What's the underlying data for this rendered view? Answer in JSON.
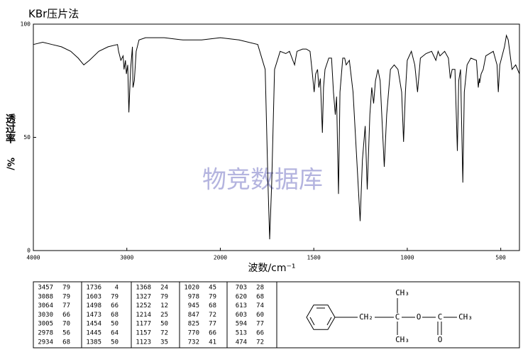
{
  "chart_data": {
    "type": "line",
    "title": "KBr压片法",
    "ylabel": "透过率",
    "ylabel_unit": "%/",
    "xlabel": "波数/cm⁻¹",
    "color": "#000000",
    "xlim": [
      4000,
      400
    ],
    "ylim": [
      0,
      100
    ],
    "xscale": {
      "break": 2000,
      "compress_above": 2
    },
    "xticks": [
      4000,
      3000,
      2000,
      1500,
      1000,
      500
    ],
    "yticks": [
      0,
      50,
      100
    ],
    "x": [
      4000,
      3900,
      3800,
      3700,
      3600,
      3520,
      3460,
      3400,
      3300,
      3200,
      3100,
      3088,
      3064,
      3040,
      3030,
      3015,
      3005,
      2990,
      2978,
      2960,
      2940,
      2934,
      2920,
      2900,
      2870,
      2800,
      2600,
      2400,
      2200,
      2000,
      1900,
      1800,
      1760,
      1745,
      1736,
      1725,
      1710,
      1680,
      1650,
      1630,
      1603,
      1590,
      1560,
      1540,
      1520,
      1510,
      1498,
      1490,
      1480,
      1473,
      1465,
      1454,
      1448,
      1440,
      1420,
      1405,
      1395,
      1385,
      1378,
      1368,
      1360,
      1345,
      1335,
      1327,
      1310,
      1290,
      1270,
      1252,
      1240,
      1225,
      1214,
      1200,
      1190,
      1180,
      1170,
      1157,
      1145,
      1123,
      1110,
      1090,
      1070,
      1050,
      1030,
      1020,
      1010,
      1000,
      978,
      960,
      945,
      930,
      900,
      870,
      847,
      835,
      825,
      800,
      780,
      770,
      760,
      745,
      732,
      725,
      715,
      703,
      695,
      680,
      660,
      630,
      620,
      615,
      613,
      605,
      594,
      580,
      540,
      520,
      513,
      505,
      480,
      470,
      460,
      440,
      420,
      400
    ],
    "values": [
      91,
      92,
      91,
      90,
      88,
      85,
      82,
      84,
      88,
      90,
      91,
      88,
      84,
      86,
      80,
      84,
      78,
      82,
      61,
      80,
      90,
      72,
      75,
      88,
      93,
      94,
      94,
      93,
      93,
      94,
      93,
      91,
      80,
      30,
      5,
      30,
      80,
      88,
      87,
      88,
      82,
      88,
      89,
      89,
      88,
      80,
      70,
      78,
      80,
      72,
      76,
      52,
      72,
      80,
      85,
      85,
      70,
      60,
      68,
      25,
      70,
      85,
      85,
      82,
      84,
      70,
      40,
      13,
      40,
      55,
      27,
      60,
      72,
      65,
      75,
      80,
      75,
      37,
      60,
      80,
      82,
      80,
      70,
      48,
      70,
      84,
      88,
      82,
      70,
      85,
      87,
      88,
      84,
      88,
      86,
      88,
      85,
      76,
      80,
      80,
      44,
      75,
      80,
      30,
      70,
      82,
      85,
      84,
      72,
      76,
      74,
      78,
      80,
      86,
      88,
      82,
      70,
      82,
      90,
      95,
      93,
      80,
      82,
      78
    ]
  },
  "watermark": "物竞数据库",
  "peak_table": [
    [
      [
        "3457",
        "79"
      ],
      [
        "3088",
        "79"
      ],
      [
        "3064",
        "77"
      ],
      [
        "3030",
        "66"
      ],
      [
        "3005",
        "70"
      ],
      [
        "2978",
        "56"
      ],
      [
        "2934",
        "68"
      ]
    ],
    [
      [
        "1736",
        "4"
      ],
      [
        "1603",
        "79"
      ],
      [
        "1498",
        "66"
      ],
      [
        "1473",
        "68"
      ],
      [
        "1454",
        "50"
      ],
      [
        "1445",
        "64"
      ],
      [
        "1385",
        "50"
      ]
    ],
    [
      [
        "1368",
        "24"
      ],
      [
        "1327",
        "79"
      ],
      [
        "1252",
        "12"
      ],
      [
        "1214",
        "25"
      ],
      [
        "1177",
        "50"
      ],
      [
        "1157",
        "72"
      ],
      [
        "1123",
        "35"
      ]
    ],
    [
      [
        "1020",
        "45"
      ],
      [
        "978",
        "79"
      ],
      [
        "945",
        "68"
      ],
      [
        "847",
        "72"
      ],
      [
        "825",
        "77"
      ],
      [
        "770",
        "66"
      ],
      [
        "732",
        "41"
      ]
    ],
    [
      [
        "703",
        "28"
      ],
      [
        "620",
        "68"
      ],
      [
        "613",
        "74"
      ],
      [
        "603",
        "60"
      ],
      [
        "594",
        "77"
      ],
      [
        "513",
        "66"
      ],
      [
        "474",
        "72"
      ]
    ]
  ],
  "structure": {
    "top_methyl": "CH₃",
    "methylene": "CH₂",
    "quaternary": "C",
    "ester_o": "O",
    "carbonyl_c": "C",
    "acetyl_methyl": "CH₃",
    "carbonyl_o": "O",
    "bottom_methyl": "CH₃"
  }
}
